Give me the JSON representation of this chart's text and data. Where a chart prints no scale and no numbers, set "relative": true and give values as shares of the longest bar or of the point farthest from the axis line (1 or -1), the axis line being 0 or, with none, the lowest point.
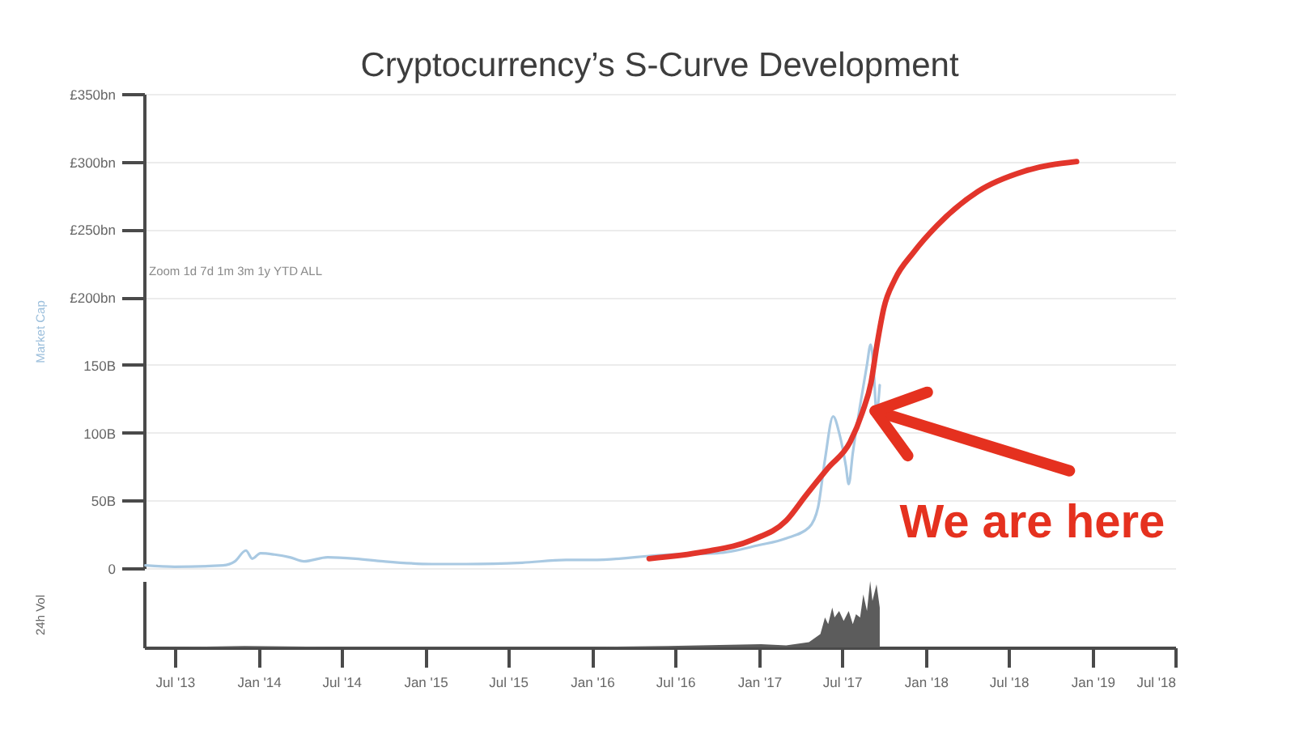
{
  "chart_data": [
    {
      "type": "line",
      "title": "Cryptocurrency’s S-Curve Development",
      "ylabel": "Market Cap",
      "xlim": [
        "2013-04-25",
        "2019-07-01"
      ],
      "ylim": [
        0,
        350
      ],
      "yticks": [
        0,
        {
          "value": 50,
          "label": "50B"
        },
        {
          "value": 100,
          "label": "100B"
        },
        {
          "value": 150,
          "label": "150B"
        },
        {
          "value": 200,
          "label": "£200bn"
        },
        {
          "value": 250,
          "label": "£250bn"
        },
        {
          "value": 300,
          "label": "£300bn"
        },
        {
          "value": 350,
          "label": "£350bn"
        }
      ],
      "grid": "y",
      "tick_labels": "y",
      "series": [
        {
          "color": "#a9c9e2",
          "x": [
            "2013-04-28",
            "2013-07-01",
            "2013-10-15",
            "2013-11-10",
            "2013-12-04",
            "2013-12-18",
            "2014-01-05",
            "2014-02-05",
            "2014-03-10",
            "2014-04-10",
            "2014-06-01",
            "2014-08-01",
            "2014-10-01",
            "2015-01-15",
            "2015-04-01",
            "2015-08-01",
            "2015-11-05",
            "2016-01-01",
            "2016-06-18",
            "2016-10-01",
            "2017-01-01",
            "2017-03-01",
            "2017-04-20",
            "2017-05-10",
            "2017-05-25",
            "2017-06-12",
            "2017-06-25",
            "2017-07-10",
            "2017-07-16",
            "2017-07-25",
            "2017-08-10",
            "2017-08-25",
            "2017-09-02",
            "2017-09-08",
            "2017-09-15",
            "2017-09-22"
          ],
          "values": [
            2,
            1,
            2,
            5,
            13,
            7,
            11,
            10,
            8,
            5,
            8,
            7,
            5,
            3,
            3,
            4,
            6,
            6,
            10,
            11,
            17,
            22,
            30,
            45,
            80,
            112,
            100,
            75,
            62,
            85,
            120,
            150,
            165,
            150,
            115,
            135
          ]
        },
        {
          "color": "#e2352b",
          "x": [
            "2016-05-05",
            "2016-09-01",
            "2016-12-18",
            "2017-03-01",
            "2017-04-14",
            "2017-06-01",
            "2017-07-19",
            "2017-08-15",
            "2017-09-03",
            "2017-09-16",
            "2017-10-01",
            "2017-10-25",
            "2017-12-05",
            "2018-01-26",
            "2018-04-25",
            "2018-08-05",
            "2018-11-27"
          ],
          "values": [
            7,
            12,
            21,
            35,
            54,
            74,
            93,
            115,
            137,
            165,
            192,
            213,
            233,
            253,
            278,
            293,
            300
          ]
        }
      ],
      "annotations": [
        "Zoom 1d 7d 1m 3m 1y YTD ALL",
        {
          "text": "We are here",
          "x": "2017-09-12",
          "y": 116
        }
      ]
    },
    {
      "type": "area",
      "ylabel": "24h Vol",
      "relative": true,
      "color": "#5c5c5c",
      "xlim": [
        "2013-04-25",
        "2019-07-01"
      ],
      "xticks": [
        {
          "value": "2013-07-01",
          "label": "Jul '13"
        },
        {
          "value": "2014-01-01",
          "label": "Jan '14"
        },
        {
          "value": "2014-07-01",
          "label": "Jul '14"
        },
        {
          "value": "2015-01-01",
          "label": "Jan '15"
        },
        {
          "value": "2015-07-01",
          "label": "Jul '15"
        },
        {
          "value": "2016-01-01",
          "label": "Jan '16"
        },
        {
          "value": "2016-07-01",
          "label": "Jul '16"
        },
        {
          "value": "2017-01-01",
          "label": "Jan '17"
        },
        {
          "value": "2017-07-01",
          "label": "Jul '17"
        },
        {
          "value": "2018-01-01",
          "label": "Jan '18"
        },
        {
          "value": "2018-07-01",
          "label": "Jul '18"
        },
        {
          "value": "2019-01-01",
          "label": "Jan '19"
        },
        {
          "value": "2019-07-01",
          "label": "Jul '18"
        }
      ],
      "x": [
        "2013-04-28",
        "2013-12-01",
        "2014-06-01",
        "2016-01-01",
        "2016-06-15",
        "2017-01-05",
        "2017-03-01",
        "2017-04-20",
        "2017-05-15",
        "2017-05-25",
        "2017-06-01",
        "2017-06-10",
        "2017-06-15",
        "2017-06-25",
        "2017-07-05",
        "2017-07-16",
        "2017-07-25",
        "2017-08-01",
        "2017-08-10",
        "2017-08-17",
        "2017-08-25",
        "2017-09-01",
        "2017-09-06",
        "2017-09-15",
        "2017-09-22"
      ],
      "values": [
        0,
        0.02,
        0.01,
        0.01,
        0.02,
        0.05,
        0.03,
        0.08,
        0.2,
        0.45,
        0.35,
        0.6,
        0.45,
        0.55,
        0.4,
        0.55,
        0.35,
        0.5,
        0.45,
        0.8,
        0.55,
        1,
        0.7,
        0.95,
        0.6
      ]
    }
  ]
}
